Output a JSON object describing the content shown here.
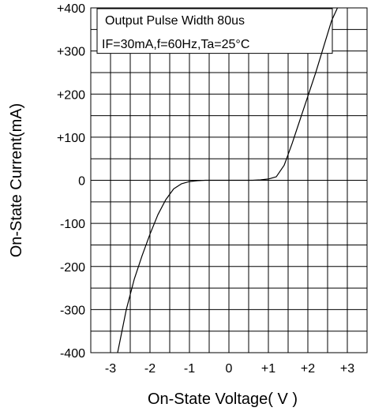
{
  "chart_data": {
    "type": "line",
    "title": "",
    "xlabel": "On-State Voltage( V )",
    "ylabel": "On-State Current(mA)",
    "xlim": [
      -3.5,
      3.5
    ],
    "ylim": [
      -400,
      400
    ],
    "x_ticks": [
      -3,
      -2,
      -1,
      0,
      1,
      2,
      3
    ],
    "x_tick_labels": [
      "-3",
      "-2",
      "-1",
      "0",
      "+1",
      "+2",
      "+3"
    ],
    "y_ticks": [
      -400,
      -300,
      -200,
      -100,
      0,
      100,
      200,
      300,
      400
    ],
    "y_tick_labels": [
      "-400",
      "-300",
      "-200",
      "-100",
      "0",
      "+100",
      "+200",
      "+300",
      "+400"
    ],
    "grid": true,
    "annotations": [
      "Output Pulse Width 80us",
      "IF=30mA,f=60Hz,Ta=25°C"
    ],
    "series": [
      {
        "x": [
          -2.82,
          -2.6,
          -2.4,
          -2.2,
          -2.0,
          -1.8,
          -1.6,
          -1.4,
          -1.2,
          -1.0,
          -0.8,
          -0.6,
          -0.3,
          0.0,
          0.3,
          0.6,
          0.8,
          1.0,
          1.2,
          1.4,
          1.6,
          1.8,
          2.0,
          2.2,
          2.4,
          2.6,
          2.75
        ],
        "y": [
          -400,
          -300,
          -230,
          -175,
          -125,
          -80,
          -45,
          -20,
          -8,
          -3,
          -1,
          0,
          0,
          0,
          0,
          0,
          1,
          3,
          8,
          35,
          85,
          140,
          195,
          250,
          310,
          370,
          400
        ]
      }
    ]
  }
}
